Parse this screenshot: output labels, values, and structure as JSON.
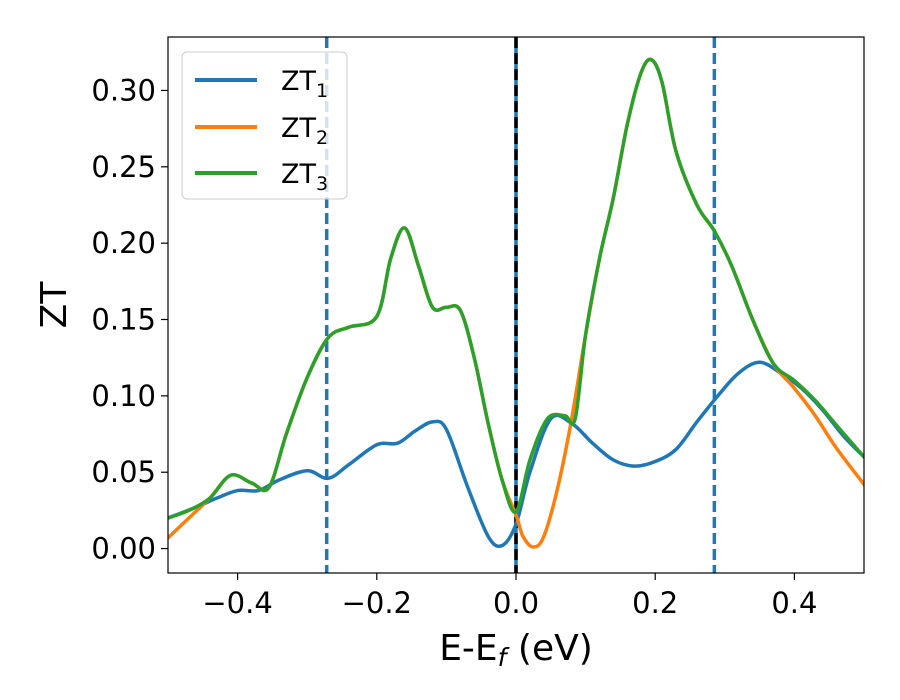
{
  "chart_data": {
    "type": "line",
    "xlabel": "E-E",
    "xlabel_sub": "f",
    "xlabel_unit": " (eV)",
    "ylabel": "ZT",
    "xlim": [
      -0.5,
      0.5
    ],
    "ylim": [
      -0.016,
      0.335
    ],
    "grid": false,
    "legend_position": "top-left",
    "x_ticks": [
      {
        "value": -0.4,
        "label": "−0.4"
      },
      {
        "value": -0.2,
        "label": "−0.2"
      },
      {
        "value": 0.0,
        "label": "0.0"
      },
      {
        "value": 0.2,
        "label": "0.2"
      },
      {
        "value": 0.4,
        "label": "0.4"
      }
    ],
    "y_ticks": [
      {
        "value": 0.0,
        "label": "0.00"
      },
      {
        "value": 0.05,
        "label": "0.05"
      },
      {
        "value": 0.1,
        "label": "0.10"
      },
      {
        "value": 0.15,
        "label": "0.15"
      },
      {
        "value": 0.2,
        "label": "0.20"
      },
      {
        "value": 0.25,
        "label": "0.25"
      },
      {
        "value": 0.3,
        "label": "0.30"
      }
    ],
    "vlines": [
      {
        "x": -0.272,
        "style": "dashed",
        "color": "#1f77b4"
      },
      {
        "x": 0.0,
        "style": "solid",
        "color": "#1f77b4"
      },
      {
        "x": 0.0,
        "style": "dashed",
        "color": "#000000"
      },
      {
        "x": 0.285,
        "style": "dashed",
        "color": "#1f77b4"
      }
    ],
    "series": [
      {
        "name": "ZT",
        "subscript": "1",
        "color": "#1f77b4",
        "x": [
          -0.5,
          -0.46,
          -0.43,
          -0.4,
          -0.37,
          -0.34,
          -0.3,
          -0.27,
          -0.24,
          -0.2,
          -0.17,
          -0.145,
          -0.12,
          -0.1,
          -0.07,
          -0.04,
          -0.02,
          0.0,
          0.02,
          0.05,
          0.08,
          0.11,
          0.14,
          0.17,
          0.2,
          0.23,
          0.26,
          0.29,
          0.32,
          0.35,
          0.38,
          0.41,
          0.44,
          0.47,
          0.5
        ],
        "y": [
          0.02,
          0.027,
          0.033,
          0.038,
          0.038,
          0.045,
          0.051,
          0.046,
          0.055,
          0.068,
          0.069,
          0.077,
          0.083,
          0.078,
          0.041,
          0.008,
          0.002,
          0.016,
          0.05,
          0.085,
          0.082,
          0.069,
          0.058,
          0.054,
          0.057,
          0.065,
          0.083,
          0.1,
          0.115,
          0.122,
          0.115,
          0.105,
          0.091,
          0.074,
          0.06
        ]
      },
      {
        "name": "ZT",
        "subscript": "2",
        "color": "#ff7f0e",
        "x": [
          -0.5,
          -0.47,
          -0.44,
          -0.41,
          -0.38,
          -0.355,
          -0.33,
          -0.3,
          -0.27,
          -0.24,
          -0.2,
          -0.18,
          -0.16,
          -0.14,
          -0.12,
          -0.1,
          -0.08,
          -0.06,
          -0.04,
          -0.02,
          0.0,
          0.01,
          0.025,
          0.04,
          0.06,
          0.08,
          0.1,
          0.12,
          0.14,
          0.16,
          0.18,
          0.195,
          0.21,
          0.23,
          0.26,
          0.285,
          0.31,
          0.34,
          0.37,
          0.4,
          0.43,
          0.46,
          0.5
        ],
        "y": [
          0.007,
          0.02,
          0.033,
          0.048,
          0.043,
          0.04,
          0.075,
          0.112,
          0.138,
          0.145,
          0.152,
          0.19,
          0.21,
          0.185,
          0.158,
          0.158,
          0.156,
          0.125,
          0.082,
          0.045,
          0.022,
          0.008,
          0.001,
          0.008,
          0.04,
          0.085,
          0.14,
          0.19,
          0.23,
          0.278,
          0.312,
          0.32,
          0.305,
          0.26,
          0.225,
          0.208,
          0.185,
          0.15,
          0.121,
          0.105,
          0.087,
          0.066,
          0.042
        ]
      },
      {
        "name": "ZT",
        "subscript": "3",
        "color": "#2ca02c",
        "x": [
          -0.5,
          -0.47,
          -0.44,
          -0.41,
          -0.38,
          -0.355,
          -0.33,
          -0.3,
          -0.27,
          -0.24,
          -0.2,
          -0.18,
          -0.16,
          -0.14,
          -0.12,
          -0.1,
          -0.08,
          -0.06,
          -0.04,
          -0.02,
          0.0,
          0.02,
          0.045,
          0.07,
          0.085,
          0.1,
          0.12,
          0.14,
          0.16,
          0.18,
          0.195,
          0.21,
          0.23,
          0.26,
          0.285,
          0.31,
          0.34,
          0.37,
          0.4,
          0.43,
          0.46,
          0.5
        ],
        "y": [
          0.02,
          0.025,
          0.033,
          0.048,
          0.043,
          0.04,
          0.075,
          0.112,
          0.138,
          0.145,
          0.152,
          0.19,
          0.21,
          0.185,
          0.158,
          0.158,
          0.156,
          0.125,
          0.082,
          0.045,
          0.024,
          0.058,
          0.085,
          0.087,
          0.085,
          0.14,
          0.19,
          0.23,
          0.278,
          0.312,
          0.32,
          0.305,
          0.26,
          0.225,
          0.208,
          0.185,
          0.15,
          0.121,
          0.11,
          0.097,
          0.081,
          0.06
        ]
      }
    ]
  }
}
